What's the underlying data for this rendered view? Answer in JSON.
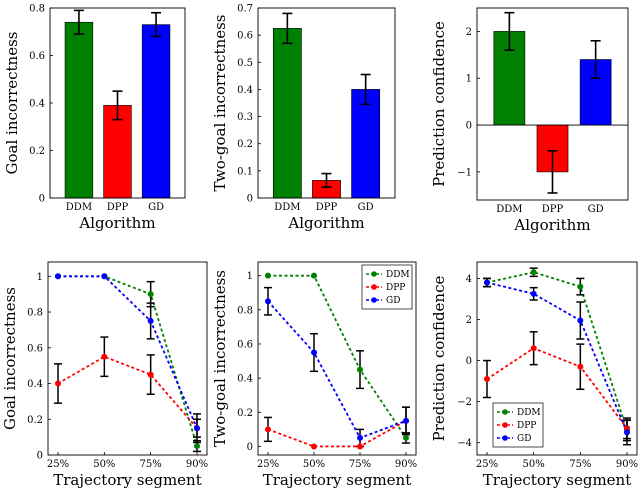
{
  "chart_data": [
    {
      "type": "bar",
      "categories": [
        "DDM",
        "DPP",
        "GD"
      ],
      "values": [
        0.74,
        0.39,
        0.73
      ],
      "errors": [
        0.05,
        0.06,
        0.05
      ],
      "colors": [
        "#008000",
        "#ff0000",
        "#0000ff"
      ],
      "xlabel": "Algorithm",
      "ylabel": "Goal incorrectness",
      "ylim": [
        0,
        0.8
      ],
      "yticks": [
        0,
        0.2,
        0.4,
        0.6,
        0.8
      ],
      "ytick_labels": [
        "0",
        "0.2",
        "0.4",
        "0.6",
        "0.8"
      ]
    },
    {
      "type": "bar",
      "categories": [
        "DDM",
        "DPP",
        "GD"
      ],
      "values": [
        0.625,
        0.065,
        0.4
      ],
      "errors": [
        0.055,
        0.025,
        0.055
      ],
      "colors": [
        "#008000",
        "#ff0000",
        "#0000ff"
      ],
      "xlabel": "Algorithm",
      "ylabel": "Two-goal incorrectness",
      "ylim": [
        0,
        0.7
      ],
      "yticks": [
        0,
        0.1,
        0.2,
        0.3,
        0.4,
        0.5,
        0.6,
        0.7
      ],
      "ytick_labels": [
        "0",
        "0.1",
        "0.2",
        "0.3",
        "0.4",
        "0.5",
        "0.6",
        "0.7"
      ]
    },
    {
      "type": "bar",
      "categories": [
        "DDM",
        "DPP",
        "GD"
      ],
      "values": [
        2.0,
        -1.0,
        1.4
      ],
      "errors": [
        0.4,
        0.45,
        0.4
      ],
      "colors": [
        "#008000",
        "#ff0000",
        "#0000ff"
      ],
      "xlabel": "Algorithm",
      "ylabel": "Prediction confidence",
      "ylim": [
        -1.6,
        2.5
      ],
      "yticks": [
        -1,
        0,
        1,
        2
      ],
      "ytick_labels": [
        "−1",
        "0",
        "1",
        "2"
      ]
    },
    {
      "type": "line",
      "categories": [
        "25%",
        "50%",
        "75%",
        "90%"
      ],
      "series": [
        {
          "name": "DDM",
          "color": "#008000",
          "values": [
            1.0,
            1.0,
            0.9,
            0.05
          ],
          "errors": [
            0,
            0,
            0.07,
            0.03
          ]
        },
        {
          "name": "DPP",
          "color": "#ff0000",
          "values": [
            0.4,
            0.55,
            0.45,
            0.15
          ],
          "errors": [
            0.11,
            0.11,
            0.11,
            0.05
          ]
        },
        {
          "name": "GD",
          "color": "#0000ff",
          "values": [
            1.0,
            1.0,
            0.75,
            0.15
          ],
          "errors": [
            0,
            0,
            0.1,
            0.08
          ]
        }
      ],
      "xlabel": "Trajectory segment",
      "ylabel": "Goal incorrectness",
      "ylim": [
        0,
        1.08
      ],
      "yticks": [
        0,
        0.2,
        0.4,
        0.6,
        0.8,
        1
      ],
      "ytick_labels": [
        "0",
        "0.2",
        "0.4",
        "0.6",
        "0.8",
        "1"
      ],
      "legend": false
    },
    {
      "type": "line",
      "categories": [
        "25%",
        "50%",
        "75%",
        "90%"
      ],
      "series": [
        {
          "name": "DDM",
          "color": "#008000",
          "values": [
            1.0,
            1.0,
            0.45,
            0.05
          ],
          "errors": [
            0,
            0,
            0.11,
            0.03
          ]
        },
        {
          "name": "DPP",
          "color": "#ff0000",
          "values": [
            0.1,
            0.0,
            0.0,
            0.15
          ],
          "errors": [
            0.07,
            0,
            0,
            0.08
          ]
        },
        {
          "name": "GD",
          "color": "#0000ff",
          "values": [
            0.85,
            0.55,
            0.05,
            0.15
          ],
          "errors": [
            0.08,
            0.11,
            0.05,
            0.08
          ]
        }
      ],
      "xlabel": "Trajectory segment",
      "ylabel": "Two-goal incorrectness",
      "ylim": [
        -0.05,
        1.08
      ],
      "yticks": [
        0,
        0.2,
        0.4,
        0.6,
        0.8,
        1
      ],
      "ytick_labels": [
        "0",
        "0.2",
        "0.4",
        "0.6",
        "0.8",
        "1"
      ],
      "legend": true,
      "legend_position": "top-right"
    },
    {
      "type": "line",
      "categories": [
        "25%",
        "50%",
        "75%",
        "90%"
      ],
      "series": [
        {
          "name": "DDM",
          "color": "#008000",
          "values": [
            3.8,
            4.3,
            3.6,
            -3.4
          ],
          "errors": [
            0.2,
            0.2,
            0.4,
            0.5
          ]
        },
        {
          "name": "DPP",
          "color": "#ff0000",
          "values": [
            -0.9,
            0.6,
            -0.3,
            -3.3
          ],
          "errors": [
            0.9,
            0.8,
            1.1,
            0.5
          ]
        },
        {
          "name": "GD",
          "color": "#0000ff",
          "values": [
            3.8,
            3.25,
            1.95,
            -3.5
          ],
          "errors": [
            0.2,
            0.3,
            0.9,
            0.6
          ]
        }
      ],
      "xlabel": "Trajectory segment",
      "ylabel": "Prediction confidence",
      "ylim": [
        -4.6,
        4.8
      ],
      "yticks": [
        -4,
        -2,
        0,
        2,
        4
      ],
      "ytick_labels": [
        "−4",
        "−2",
        "0",
        "2",
        "4"
      ],
      "legend": true,
      "legend_position": "bottom-left"
    }
  ]
}
